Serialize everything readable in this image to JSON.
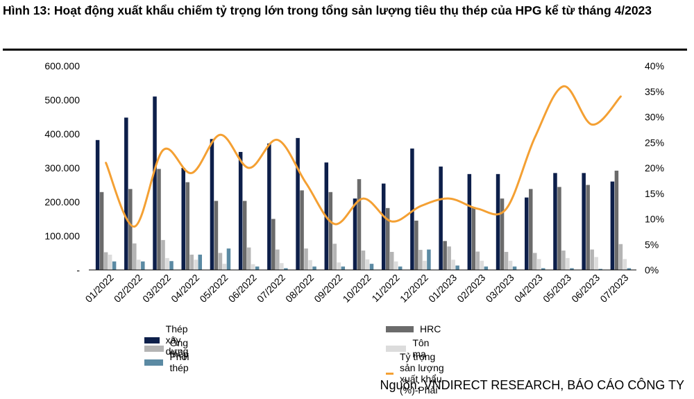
{
  "figure": {
    "title": "Hình 13: Hoạt động xuất khẩu chiếm tỷ trọng lớn trong tổng sản lượng tiêu thụ thép của HPG kể từ tháng 4/2023",
    "source": "Nguồn: VNDIRECT RESEARCH, BÁO CÁO CÔNG TY"
  },
  "colors": {
    "thep_xay_dung": "#0d1f4a",
    "hrc": "#6b6b6b",
    "ong_thep": "#b4b4b4",
    "ton_ma": "#dcdcdc",
    "phoi_thep": "#5b8aa3",
    "ty_trong": "#f4a033"
  },
  "chart_data": {
    "type": "bar",
    "categories": [
      "01/2022",
      "02/2022",
      "03/2022",
      "04/2022",
      "05/2022",
      "06/2022",
      "07/2022",
      "08/2022",
      "09/2022",
      "10/2022",
      "11/2022",
      "12/2022",
      "01/2023",
      "02/2023",
      "03/2023",
      "04/2023",
      "05/2023",
      "06/2023",
      "07/2023"
    ],
    "series": [
      {
        "name": "Thép xây dựng",
        "axis": "left",
        "kind": "bar",
        "values": [
          382000,
          448000,
          510000,
          300000,
          385000,
          347000,
          372000,
          388000,
          316000,
          210000,
          254000,
          357000,
          304000,
          282000,
          282000,
          213000,
          285000,
          285000,
          260000
        ]
      },
      {
        "name": "HRC",
        "axis": "left",
        "kind": "bar",
        "values": [
          229000,
          238000,
          297000,
          258000,
          203000,
          203000,
          150000,
          234000,
          229000,
          267000,
          182000,
          145000,
          85000,
          185000,
          210000,
          238000,
          244000,
          250000,
          292000
        ]
      },
      {
        "name": "Ống thép",
        "axis": "left",
        "kind": "bar",
        "values": [
          52000,
          78000,
          88000,
          45000,
          50000,
          66000,
          60000,
          63000,
          77000,
          57000,
          53000,
          59000,
          69000,
          54000,
          53000,
          50000,
          57000,
          60000,
          76000
        ]
      },
      {
        "name": "Tôn mạ",
        "axis": "left",
        "kind": "bar",
        "values": [
          45000,
          30000,
          35000,
          30000,
          18000,
          17000,
          20000,
          29000,
          22000,
          31000,
          25000,
          27000,
          30000,
          27000,
          27000,
          32000,
          35000,
          38000,
          32000
        ]
      },
      {
        "name": "Phôi thép",
        "axis": "left",
        "kind": "bar",
        "values": [
          25000,
          25000,
          26000,
          45000,
          63000,
          10000,
          5000,
          10000,
          10000,
          18000,
          10000,
          60000,
          13000,
          10000,
          10000,
          5000,
          5000,
          3000,
          5000
        ]
      },
      {
        "name": "Tỷ trọng sản lượng xuất khẩu (%)-Phải",
        "axis": "right",
        "kind": "line",
        "values": [
          21,
          8.5,
          23.5,
          19,
          26.5,
          20,
          25.5,
          17,
          9,
          14,
          9.5,
          12.5,
          14,
          12,
          12,
          26,
          36,
          28.5,
          34
        ]
      }
    ],
    "y_left": {
      "min": 0,
      "max": 600000,
      "ticks": [
        "-",
        "100.000",
        "200.000",
        "300.000",
        "400.000",
        "500.000",
        "600.000"
      ]
    },
    "y_right": {
      "min": 0,
      "max": 40,
      "ticks": [
        "0%",
        "5%",
        "10%",
        "15%",
        "20%",
        "25%",
        "30%",
        "35%",
        "40%"
      ]
    },
    "grid": false,
    "legend_position": "bottom"
  }
}
